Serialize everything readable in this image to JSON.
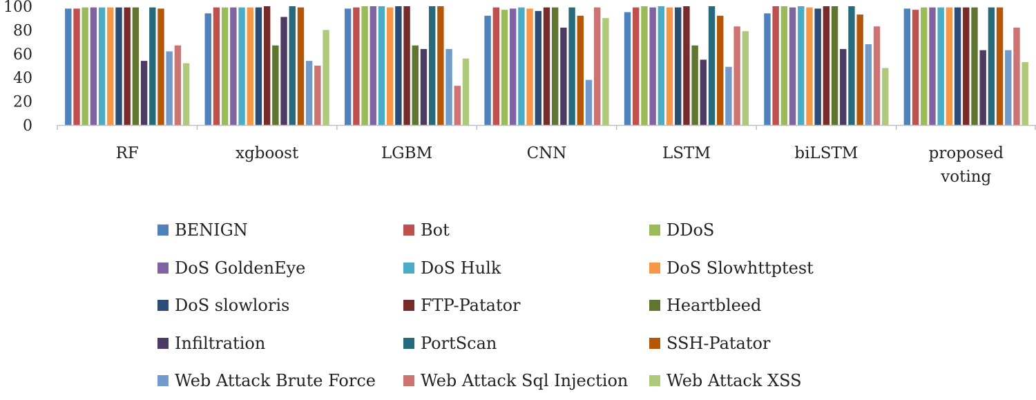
{
  "chart_data": {
    "type": "bar",
    "title": "",
    "xlabel": "",
    "ylabel": "",
    "ylim": [
      0,
      100
    ],
    "yticks": [
      "0",
      "20",
      "40",
      "60",
      "80",
      "100"
    ],
    "legend_position": "bottom",
    "categories": [
      "RF",
      "xgboost",
      "LGBM",
      "CNN",
      "LSTM",
      "biLSTM",
      "proposed voting"
    ],
    "series": [
      {
        "name": "BENIGN",
        "color": "#4F81BD",
        "values": [
          98,
          94,
          98,
          92,
          95,
          94,
          98
        ]
      },
      {
        "name": "Bot",
        "color": "#C0504D",
        "values": [
          98,
          99,
          99,
          99,
          99,
          100,
          97
        ]
      },
      {
        "name": "DDoS",
        "color": "#9BBB59",
        "values": [
          99,
          99,
          100,
          97,
          100,
          100,
          99
        ]
      },
      {
        "name": "DoS GoldenEye",
        "color": "#8064A2",
        "values": [
          99,
          99,
          100,
          98,
          99,
          99,
          99
        ]
      },
      {
        "name": "DoS Hulk",
        "color": "#4BACC6",
        "values": [
          99,
          99,
          100,
          99,
          100,
          100,
          99
        ]
      },
      {
        "name": "DoS Slowhttptest",
        "color": "#F79646",
        "values": [
          99,
          99,
          99,
          98,
          99,
          99,
          99
        ]
      },
      {
        "name": "DoS slowloris",
        "color": "#2C4D75",
        "values": [
          99,
          99,
          100,
          96,
          99,
          98,
          99
        ]
      },
      {
        "name": "FTP-Patator",
        "color": "#772C2A",
        "values": [
          99,
          100,
          100,
          99,
          100,
          100,
          99
        ]
      },
      {
        "name": "Heartbleed",
        "color": "#5F7530",
        "values": [
          99,
          67,
          67,
          99,
          67,
          100,
          99
        ]
      },
      {
        "name": "Infiltration",
        "color": "#4D3B62",
        "values": [
          54,
          91,
          64,
          82,
          55,
          64,
          63
        ]
      },
      {
        "name": "PortScan",
        "color": "#276A7C",
        "values": [
          99,
          100,
          100,
          99,
          100,
          100,
          99
        ]
      },
      {
        "name": "SSH-Patator",
        "color": "#B65708",
        "values": [
          98,
          99,
          100,
          92,
          92,
          93,
          99
        ]
      },
      {
        "name": "Web Attack Brute Force",
        "color": "#729ACA",
        "values": [
          62,
          54,
          64,
          38,
          49,
          68,
          63
        ]
      },
      {
        "name": "Web Attack Sql Injection",
        "color": "#CD7371",
        "values": [
          67,
          50,
          33,
          99,
          83,
          83,
          82
        ]
      },
      {
        "name": "Web Attack XSS",
        "color": "#AFC97A",
        "values": [
          52,
          80,
          56,
          90,
          79,
          48,
          53
        ]
      }
    ]
  }
}
